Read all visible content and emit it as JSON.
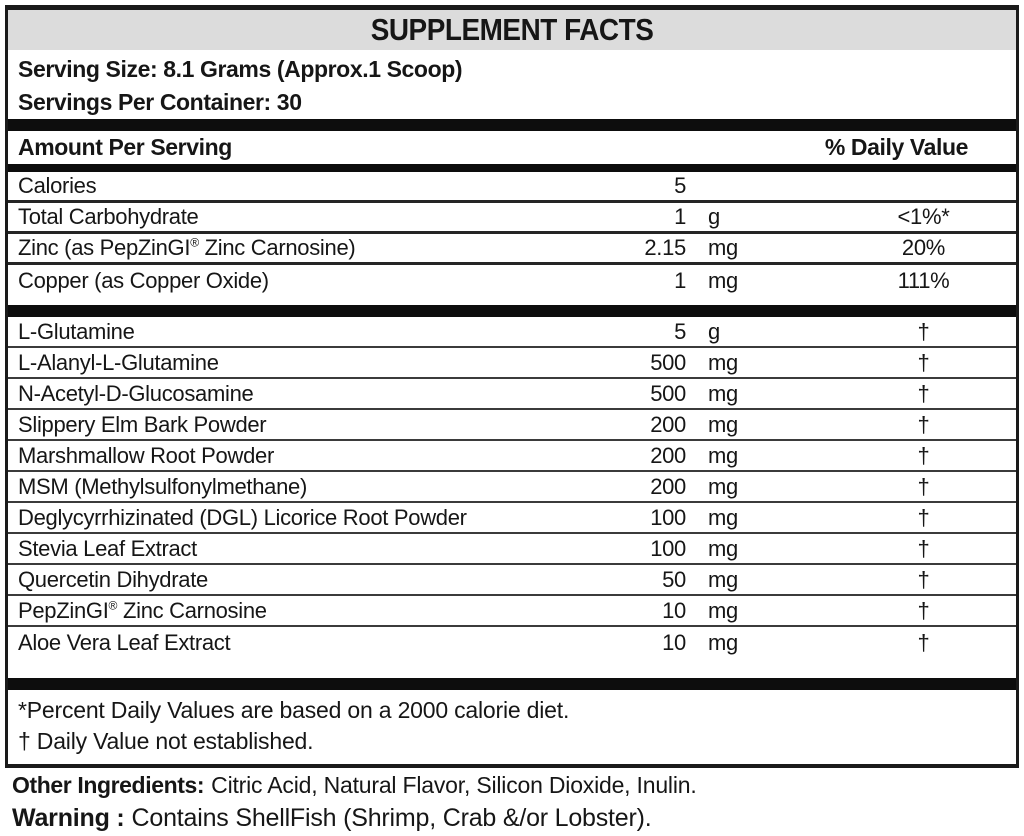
{
  "label": {
    "title": "SUPPLEMENT FACTS",
    "serving_size": "Serving Size: 8.1 Grams (Approx.1 Scoop)",
    "servings_per_container": "Servings Per Container: 30",
    "columns": {
      "amount": "Amount Per Serving",
      "daily_value": "% Daily Value"
    },
    "nutrient_rows": [
      {
        "name": "Calories",
        "amount": "5",
        "unit": "",
        "dv": ""
      },
      {
        "name": "Total Carbohydrate",
        "amount": "1",
        "unit": "g",
        "dv": "<1%*"
      },
      {
        "name": "Zinc (as PepZinGI® Zinc Carnosine)",
        "amount": "2.15",
        "unit": "mg",
        "dv": "20%"
      },
      {
        "name": "Copper (as Copper Oxide)",
        "amount": "1",
        "unit": "mg",
        "dv": "111%"
      }
    ],
    "ingredient_rows": [
      {
        "name": "L-Glutamine",
        "amount": "5",
        "unit": "g",
        "dv": "†"
      },
      {
        "name": "L-Alanyl-L-Glutamine",
        "amount": "500",
        "unit": "mg",
        "dv": "†"
      },
      {
        "name": "N-Acetyl-D-Glucosamine",
        "amount": "500",
        "unit": "mg",
        "dv": "†"
      },
      {
        "name": "Slippery Elm Bark Powder",
        "amount": "200",
        "unit": "mg",
        "dv": "†"
      },
      {
        "name": "Marshmallow Root Powder",
        "amount": "200",
        "unit": "mg",
        "dv": "†"
      },
      {
        "name": "MSM (Methylsulfonylmethane)",
        "amount": "200",
        "unit": "mg",
        "dv": "†"
      },
      {
        "name": "Deglycyrrhizinated (DGL) Licorice Root Powder",
        "amount": "100",
        "unit": "mg",
        "dv": "†"
      },
      {
        "name": "Stevia Leaf Extract",
        "amount": "100",
        "unit": "mg",
        "dv": "†"
      },
      {
        "name": "Quercetin Dihydrate",
        "amount": "50",
        "unit": "mg",
        "dv": "†"
      },
      {
        "name": "PepZinGI® Zinc Carnosine",
        "amount": "10",
        "unit": "mg",
        "dv": "†"
      },
      {
        "name": "Aloe Vera Leaf Extract",
        "amount": "10",
        "unit": "mg",
        "dv": "†"
      }
    ],
    "footnotes": [
      "*Percent Daily Values are based on a 2000 calorie diet.",
      "† Daily Value not established."
    ],
    "other_ingredients_label": "Other Ingredients:",
    "other_ingredients": "Citric Acid, Natural Flavor, Silicon Dioxide, Inulin.",
    "warning_label": "Warning :",
    "warning": "Contains ShellFish (Shrimp, Crab &/or Lobster).",
    "colors": {
      "border": "#1a1a1a",
      "title_band": "#dcdcdc",
      "text": "#161616"
    }
  }
}
